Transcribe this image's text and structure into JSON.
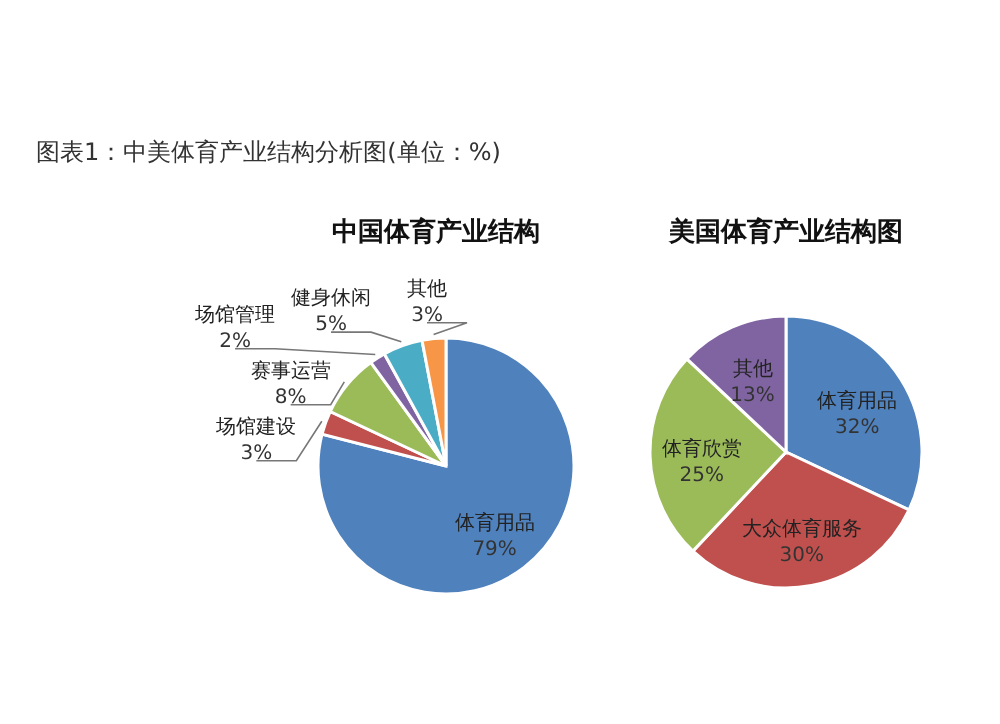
{
  "chart_data": [
    {
      "type": "pie",
      "title": "中国体育产业结构",
      "annotations": [
        "图表1：中美体育产业结构分析图(单位：%)"
      ],
      "categories": [
        "体育用品",
        "场馆建设",
        "赛事运营",
        "场馆管理",
        "健身休闲",
        "其他"
      ],
      "values": [
        79,
        3,
        8,
        2,
        5,
        3
      ],
      "value_labels": [
        "79%",
        "3%",
        "8%",
        "2%",
        "5%",
        "3%"
      ],
      "colors": [
        "#4f81bd",
        "#c0504d",
        "#9bbb59",
        "#8064a2",
        "#4bacc6",
        "#f79646"
      ]
    },
    {
      "type": "pie",
      "title": "美国体育产业结构图",
      "categories": [
        "体育用品",
        "大众体育服务",
        "体育欣赏",
        "其他"
      ],
      "values": [
        32,
        30,
        25,
        13
      ],
      "value_labels": [
        "32%",
        "30%",
        "25%",
        "13%"
      ],
      "colors": [
        "#4f81bd",
        "#c0504d",
        "#9bbb59",
        "#8064a2"
      ]
    }
  ]
}
